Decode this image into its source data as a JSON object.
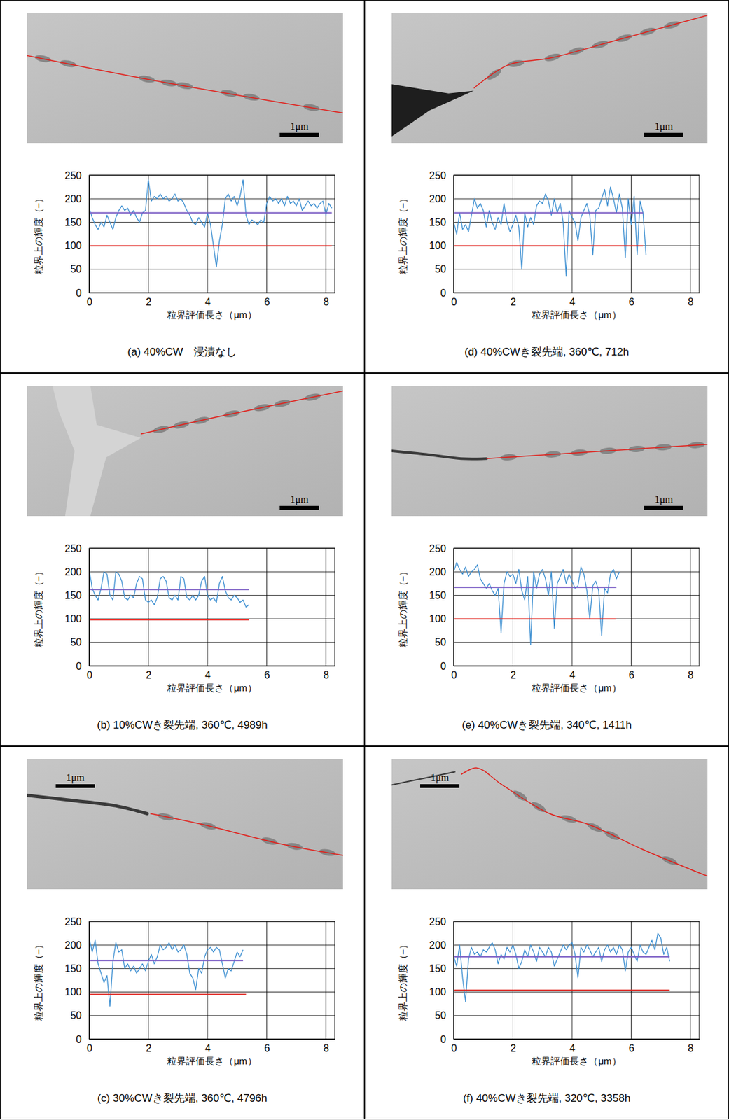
{
  "chart_data": [
    {
      "type": "line",
      "title": "(a) 40%CW　浸漬なし",
      "xlabel": "粒界評価長さ（μm）",
      "ylabel": "粒界上の輝度（−）",
      "annotations": [
        "1μm"
      ],
      "xlim": [
        0,
        8.3
      ],
      "xticks": [
        0,
        2,
        4,
        6,
        8
      ],
      "ylim": [
        0,
        250
      ],
      "yticks": [
        0,
        50,
        100,
        150,
        200,
        250
      ],
      "grid": true,
      "series": [
        {
          "color": "#3d8fd1",
          "x": [
            0,
            0.1,
            0.2,
            0.3,
            0.4,
            0.5,
            0.6,
            0.7,
            0.8,
            0.9,
            1,
            1.1,
            1.2,
            1.3,
            1.4,
            1.5,
            1.6,
            1.7,
            1.8,
            1.9,
            2,
            2.1,
            2.2,
            2.3,
            2.4,
            2.5,
            2.6,
            2.7,
            2.8,
            2.9,
            3,
            3.1,
            3.2,
            3.3,
            3.4,
            3.5,
            3.6,
            3.7,
            3.8,
            3.9,
            4,
            4.1,
            4.2,
            4.3,
            4.4,
            4.5,
            4.6,
            4.7,
            4.8,
            4.9,
            5,
            5.1,
            5.2,
            5.3,
            5.4,
            5.5,
            5.6,
            5.7,
            5.8,
            5.9,
            6,
            6.1,
            6.2,
            6.3,
            6.4,
            6.5,
            6.6,
            6.7,
            6.8,
            6.9,
            7,
            7.1,
            7.2,
            7.3,
            7.4,
            7.5,
            7.6,
            7.7,
            7.8,
            7.9,
            8,
            8.1,
            8.2
          ],
          "values": [
            180,
            160,
            145,
            135,
            150,
            140,
            165,
            150,
            135,
            160,
            175,
            185,
            175,
            180,
            165,
            175,
            160,
            150,
            170,
            175,
            240,
            195,
            205,
            200,
            210,
            200,
            205,
            195,
            200,
            210,
            195,
            200,
            190,
            175,
            165,
            150,
            145,
            160,
            150,
            140,
            170,
            145,
            100,
            55,
            110,
            145,
            200,
            210,
            195,
            205,
            185,
            205,
            240,
            165,
            145,
            155,
            150,
            145,
            155,
            150,
            190,
            205,
            195,
            200,
            190,
            200,
            185,
            205,
            190,
            195,
            185,
            200,
            175,
            185,
            195,
            185,
            190,
            180,
            190,
            195,
            165,
            190,
            180
          ]
        },
        {
          "color": "#7a5cc4",
          "x": [
            0,
            8.2
          ],
          "values": [
            170,
            170
          ]
        },
        {
          "color": "#e0201b",
          "x": [
            0,
            8.2
          ],
          "values": [
            100,
            100
          ]
        }
      ]
    },
    {
      "type": "line",
      "title": "(b) 10%CWき裂先端, 360℃, 4989h",
      "xlabel": "粒界評価長さ（μm）",
      "ylabel": "粒界上の輝度（−）",
      "annotations": [
        "1μm"
      ],
      "xlim": [
        0,
        8.3
      ],
      "xticks": [
        0,
        2,
        4,
        6,
        8
      ],
      "ylim": [
        0,
        250
      ],
      "yticks": [
        0,
        50,
        100,
        150,
        200,
        250
      ],
      "grid": true,
      "series": [
        {
          "color": "#3d8fd1",
          "x": [
            0,
            0.1,
            0.2,
            0.3,
            0.4,
            0.5,
            0.6,
            0.7,
            0.8,
            0.9,
            1,
            1.1,
            1.2,
            1.3,
            1.4,
            1.5,
            1.6,
            1.7,
            1.8,
            1.9,
            2,
            2.1,
            2.2,
            2.3,
            2.4,
            2.5,
            2.6,
            2.7,
            2.8,
            2.9,
            3,
            3.1,
            3.2,
            3.3,
            3.4,
            3.5,
            3.6,
            3.7,
            3.8,
            3.9,
            4,
            4.1,
            4.2,
            4.3,
            4.4,
            4.5,
            4.6,
            4.7,
            4.8,
            4.9,
            5,
            5.1,
            5.2,
            5.3,
            5.4
          ],
          "values": [
            205,
            165,
            150,
            140,
            165,
            200,
            195,
            150,
            140,
            200,
            195,
            180,
            145,
            140,
            150,
            145,
            175,
            190,
            185,
            140,
            135,
            140,
            130,
            145,
            185,
            190,
            180,
            145,
            140,
            150,
            140,
            190,
            185,
            145,
            140,
            150,
            140,
            150,
            180,
            190,
            150,
            140,
            145,
            135,
            175,
            190,
            160,
            145,
            140,
            150,
            145,
            135,
            140,
            125,
            130
          ]
        },
        {
          "color": "#7a5cc4",
          "x": [
            0,
            5.4
          ],
          "values": [
            162,
            162
          ]
        },
        {
          "color": "#e0201b",
          "x": [
            0,
            5.4
          ],
          "values": [
            98,
            98
          ]
        }
      ]
    },
    {
      "type": "line",
      "title": "(c) 30%CWき裂先端, 360℃, 4796h",
      "xlabel": "粒界評価長さ（μm）",
      "ylabel": "粒界上の輝度（−）",
      "annotations": [
        "1μm"
      ],
      "xlim": [
        0,
        8.3
      ],
      "xticks": [
        0,
        2,
        4,
        6,
        8
      ],
      "ylim": [
        0,
        250
      ],
      "yticks": [
        0,
        50,
        100,
        150,
        200,
        250
      ],
      "grid": true,
      "series": [
        {
          "color": "#3d8fd1",
          "x": [
            0,
            0.1,
            0.2,
            0.3,
            0.4,
            0.5,
            0.6,
            0.7,
            0.8,
            0.9,
            1,
            1.1,
            1.2,
            1.3,
            1.4,
            1.5,
            1.6,
            1.7,
            1.8,
            1.9,
            2,
            2.1,
            2.2,
            2.3,
            2.4,
            2.5,
            2.6,
            2.7,
            2.8,
            2.9,
            3,
            3.1,
            3.2,
            3.3,
            3.4,
            3.5,
            3.6,
            3.7,
            3.8,
            3.9,
            4,
            4.1,
            4.2,
            4.3,
            4.4,
            4.5,
            4.6,
            4.7,
            4.8,
            4.9,
            5,
            5.1,
            5.2
          ],
          "values": [
            215,
            185,
            210,
            160,
            140,
            120,
            135,
            70,
            165,
            205,
            185,
            190,
            150,
            160,
            145,
            155,
            140,
            150,
            160,
            145,
            165,
            180,
            160,
            175,
            200,
            190,
            195,
            205,
            190,
            200,
            185,
            190,
            200,
            180,
            140,
            130,
            105,
            150,
            140,
            175,
            190,
            195,
            185,
            195,
            190,
            160,
            130,
            150,
            145,
            165,
            185,
            175,
            190
          ]
        },
        {
          "color": "#7a5cc4",
          "x": [
            0,
            5.2
          ],
          "values": [
            167,
            167
          ]
        },
        {
          "color": "#e0201b",
          "x": [
            0,
            5.3
          ],
          "values": [
            95,
            95
          ]
        }
      ]
    },
    {
      "type": "line",
      "title": "(d) 40%CWき裂先端, 360℃, 712h",
      "xlabel": "粒界評価長さ（μm）",
      "ylabel": "粒界上の輝度（−）",
      "annotations": [
        "1μm"
      ],
      "xlim": [
        0,
        8.3
      ],
      "xticks": [
        0,
        2,
        4,
        6,
        8
      ],
      "ylim": [
        0,
        250
      ],
      "yticks": [
        0,
        50,
        100,
        150,
        200,
        250
      ],
      "grid": true,
      "series": [
        {
          "color": "#3d8fd1",
          "x": [
            0,
            0.1,
            0.2,
            0.3,
            0.4,
            0.5,
            0.6,
            0.7,
            0.8,
            0.9,
            1,
            1.1,
            1.2,
            1.3,
            1.4,
            1.5,
            1.6,
            1.7,
            1.8,
            1.9,
            2,
            2.1,
            2.2,
            2.3,
            2.4,
            2.5,
            2.6,
            2.7,
            2.8,
            2.9,
            3,
            3.1,
            3.2,
            3.3,
            3.4,
            3.5,
            3.6,
            3.7,
            3.8,
            3.9,
            4,
            4.1,
            4.2,
            4.3,
            4.4,
            4.5,
            4.6,
            4.7,
            4.8,
            4.9,
            5,
            5.1,
            5.2,
            5.3,
            5.4,
            5.5,
            5.6,
            5.7,
            5.8,
            5.9,
            6,
            6.1,
            6.2,
            6.3,
            6.4,
            6.5
          ],
          "values": [
            150,
            125,
            170,
            135,
            145,
            130,
            165,
            200,
            180,
            190,
            175,
            140,
            175,
            150,
            135,
            160,
            145,
            190,
            150,
            130,
            145,
            165,
            140,
            50,
            170,
            140,
            160,
            145,
            185,
            195,
            190,
            210,
            195,
            165,
            200,
            170,
            190,
            150,
            35,
            175,
            160,
            150,
            110,
            160,
            175,
            190,
            165,
            80,
            175,
            180,
            200,
            220,
            185,
            225,
            200,
            170,
            210,
            180,
            75,
            200,
            145,
            205,
            80,
            195,
            170,
            80
          ]
        },
        {
          "color": "#7a5cc4",
          "x": [
            0,
            6.4
          ],
          "values": [
            170,
            170
          ]
        },
        {
          "color": "#e0201b",
          "x": [
            0,
            6.4
          ],
          "values": [
            100,
            100
          ]
        }
      ]
    },
    {
      "type": "line",
      "title": "(e) 40%CWき裂先端, 340℃, 1411h",
      "xlabel": "粒界評価長さ（μm）",
      "ylabel": "粒界上の輝度（−）",
      "annotations": [
        "1μm"
      ],
      "xlim": [
        0,
        8.3
      ],
      "xticks": [
        0,
        2,
        4,
        6,
        8
      ],
      "ylim": [
        0,
        250
      ],
      "yticks": [
        0,
        50,
        100,
        150,
        200,
        250
      ],
      "grid": true,
      "series": [
        {
          "color": "#3d8fd1",
          "x": [
            0,
            0.1,
            0.2,
            0.3,
            0.4,
            0.5,
            0.6,
            0.7,
            0.8,
            0.9,
            1,
            1.1,
            1.2,
            1.3,
            1.4,
            1.5,
            1.6,
            1.7,
            1.8,
            1.9,
            2,
            2.1,
            2.2,
            2.3,
            2.4,
            2.5,
            2.6,
            2.7,
            2.8,
            2.9,
            3,
            3.1,
            3.2,
            3.3,
            3.4,
            3.5,
            3.6,
            3.7,
            3.8,
            3.9,
            4,
            4.1,
            4.2,
            4.3,
            4.4,
            4.5,
            4.6,
            4.7,
            4.8,
            4.9,
            5,
            5.1,
            5.2,
            5.3,
            5.4,
            5.5,
            5.6
          ],
          "values": [
            200,
            220,
            205,
            195,
            210,
            190,
            200,
            205,
            215,
            185,
            175,
            165,
            175,
            160,
            150,
            165,
            70,
            175,
            200,
            190,
            195,
            175,
            205,
            160,
            140,
            190,
            45,
            200,
            165,
            195,
            205,
            185,
            150,
            200,
            80,
            175,
            190,
            205,
            175,
            195,
            180,
            165,
            170,
            210,
            195,
            160,
            100,
            170,
            180,
            160,
            65,
            165,
            155,
            195,
            205,
            185,
            200
          ]
        },
        {
          "color": "#7a5cc4",
          "x": [
            0,
            5.5
          ],
          "values": [
            167,
            167
          ]
        },
        {
          "color": "#e0201b",
          "x": [
            0,
            5.5
          ],
          "values": [
            100,
            100
          ]
        }
      ]
    },
    {
      "type": "line",
      "title": "(f) 40%CWき裂先端, 320℃, 3358h",
      "xlabel": "粒界評価長さ（μm）",
      "ylabel": "粒界上の輝度（−）",
      "annotations": [
        "1μm"
      ],
      "xlim": [
        0,
        8.3
      ],
      "xticks": [
        0,
        2,
        4,
        6,
        8
      ],
      "ylim": [
        0,
        250
      ],
      "yticks": [
        0,
        50,
        100,
        150,
        200,
        250
      ],
      "grid": true,
      "series": [
        {
          "color": "#3d8fd1",
          "x": [
            0,
            0.1,
            0.2,
            0.3,
            0.4,
            0.5,
            0.6,
            0.7,
            0.8,
            0.9,
            1,
            1.1,
            1.2,
            1.3,
            1.4,
            1.5,
            1.6,
            1.7,
            1.8,
            1.9,
            2,
            2.1,
            2.2,
            2.3,
            2.4,
            2.5,
            2.6,
            2.7,
            2.8,
            2.9,
            3,
            3.1,
            3.2,
            3.3,
            3.4,
            3.5,
            3.6,
            3.7,
            3.8,
            3.9,
            4,
            4.1,
            4.2,
            4.3,
            4.4,
            4.5,
            4.6,
            4.7,
            4.8,
            4.9,
            5,
            5.1,
            5.2,
            5.3,
            5.4,
            5.5,
            5.6,
            5.7,
            5.8,
            5.9,
            6,
            6.1,
            6.2,
            6.3,
            6.4,
            6.5,
            6.6,
            6.7,
            6.8,
            6.9,
            7,
            7.1,
            7.2,
            7.3
          ],
          "values": [
            175,
            155,
            200,
            130,
            80,
            170,
            195,
            180,
            185,
            175,
            190,
            185,
            195,
            205,
            190,
            160,
            180,
            170,
            195,
            185,
            200,
            180,
            150,
            165,
            190,
            175,
            200,
            185,
            165,
            195,
            185,
            175,
            195,
            185,
            155,
            170,
            185,
            200,
            190,
            200,
            205,
            180,
            130,
            195,
            185,
            200,
            190,
            175,
            185,
            195,
            165,
            190,
            200,
            185,
            195,
            180,
            200,
            190,
            145,
            185,
            195,
            180,
            165,
            200,
            185,
            180,
            195,
            210,
            190,
            225,
            215,
            180,
            195,
            165
          ]
        },
        {
          "color": "#7a5cc4",
          "x": [
            0,
            7.3
          ],
          "values": [
            175,
            175
          ]
        },
        {
          "color": "#e0201b",
          "x": [
            0,
            7.3
          ],
          "values": [
            104,
            104
          ]
        }
      ]
    }
  ]
}
